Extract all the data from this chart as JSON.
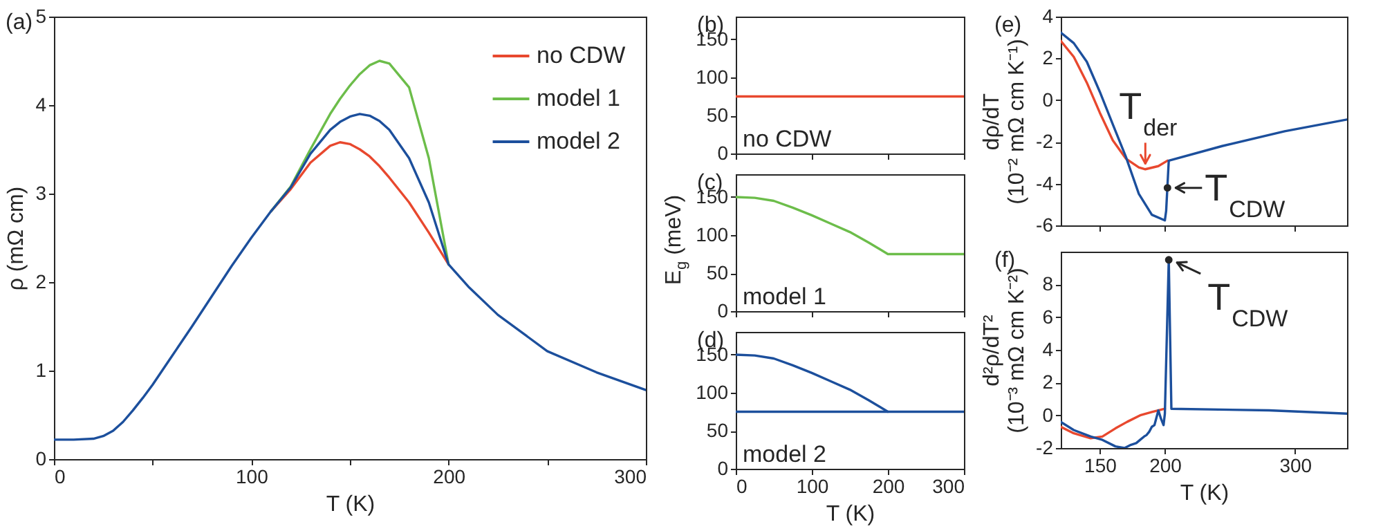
{
  "chart_data": [
    {
      "type": "line",
      "title": "(a)",
      "xlabel": "T (K)",
      "ylabel": "ρ (mΩ cm)",
      "xlim": [
        0,
        300
      ],
      "xticks": [
        0,
        {
          "value": 50,
          "label": null
        },
        100,
        {
          "value": 150,
          "label": null
        },
        200,
        {
          "value": 250,
          "label": null
        },
        300
      ],
      "ylim": [
        0,
        5
      ],
      "yticks": [
        0,
        1,
        2,
        3,
        4,
        5
      ],
      "legend": "top right",
      "x": [
        0,
        10,
        20,
        25,
        30,
        35,
        40,
        45,
        50,
        60,
        70,
        80,
        90,
        100,
        110,
        120,
        130,
        140,
        145,
        150,
        155,
        160,
        165,
        170,
        180,
        190,
        200,
        210,
        225,
        250,
        275,
        300
      ],
      "series": [
        {
          "name": "no CDW",
          "color": "#e8482e",
          "values": [
            null,
            null,
            null,
            null,
            null,
            null,
            null,
            null,
            null,
            null,
            null,
            null,
            null,
            null,
            2.8,
            3.05,
            3.35,
            3.54,
            3.58,
            3.56,
            3.5,
            3.42,
            3.31,
            3.18,
            2.9,
            2.56,
            2.2,
            null,
            null,
            null,
            null,
            null
          ]
        },
        {
          "name": "model 1",
          "color": "#6cbd4a",
          "values": [
            null,
            null,
            null,
            null,
            null,
            null,
            null,
            null,
            null,
            null,
            null,
            null,
            null,
            null,
            2.8,
            3.08,
            3.5,
            3.9,
            4.07,
            4.22,
            4.35,
            4.45,
            4.5,
            4.47,
            4.2,
            3.4,
            2.2,
            null,
            null,
            null,
            null,
            null
          ]
        },
        {
          "name": "model 2",
          "color": "#1c4f9c",
          "values": [
            0.22,
            0.22,
            0.23,
            0.26,
            0.32,
            0.42,
            0.55,
            0.69,
            0.84,
            1.17,
            1.5,
            1.84,
            2.18,
            2.5,
            2.8,
            3.07,
            3.45,
            3.72,
            3.81,
            3.87,
            3.9,
            3.88,
            3.82,
            3.72,
            3.4,
            2.9,
            2.2,
            1.95,
            1.63,
            1.22,
            0.98,
            0.78
          ]
        }
      ]
    },
    {
      "type": "line",
      "title": "(b)",
      "annotations": [
        "no CDW"
      ],
      "xlim": [
        0,
        300
      ],
      "xticks": [
        0,
        100,
        200,
        300
      ],
      "ylim": [
        0,
        180
      ],
      "yticks": [
        0,
        50,
        100,
        150
      ],
      "tick_labels": "y",
      "series": [
        {
          "color": "#e8482e",
          "x": [
            0,
            300
          ],
          "values": [
            75,
            75
          ]
        }
      ]
    },
    {
      "type": "line",
      "title": "(c)",
      "ylabel": "E$_{g}$ (meV)",
      "annotations": [
        "model 1"
      ],
      "xlim": [
        0,
        300
      ],
      "xticks": [
        0,
        100,
        200,
        300
      ],
      "ylim": [
        0,
        180
      ],
      "yticks": [
        0,
        50,
        100,
        150
      ],
      "tick_labels": "y",
      "series": [
        {
          "color": "#6cbd4a",
          "x": [
            0,
            25,
            50,
            75,
            100,
            125,
            150,
            175,
            200,
            300
          ],
          "values": [
            150,
            149,
            145,
            136,
            126,
            115,
            104,
            90,
            75,
            75
          ]
        }
      ]
    },
    {
      "type": "line",
      "title": "(d)",
      "xlabel": "T (K)",
      "annotations": [
        "model 2"
      ],
      "xlim": [
        0,
        300
      ],
      "xticks": [
        0,
        100,
        200,
        300
      ],
      "ylim": [
        0,
        180
      ],
      "yticks": [
        0,
        50,
        100,
        150
      ],
      "series": [
        {
          "color": "#1c4f9c",
          "x": [
            0,
            25,
            50,
            75,
            100,
            125,
            150,
            175,
            200
          ],
          "values": [
            150,
            149,
            145,
            136,
            126,
            115,
            104,
            90,
            75
          ]
        },
        {
          "color": "#1c4f9c",
          "x": [
            0,
            300
          ],
          "values": [
            75,
            75
          ]
        }
      ]
    },
    {
      "type": "line",
      "title": "(e)",
      "ylabel": "dρ/dT\n(10⁻² mΩ cm K⁻¹)",
      "xlim": [
        120,
        340
      ],
      "xticks": [
        150,
        200,
        300
      ],
      "ylim": [
        -6,
        4
      ],
      "yticks": [
        -6,
        -4,
        -2,
        0,
        2,
        4
      ],
      "tick_labels": "y",
      "annotations": [
        {
          "text": "T$_{der}$",
          "x": 185,
          "y": -3.3
        },
        {
          "text": "T$_{CDW}$",
          "x": 202,
          "y": -4.2
        }
      ],
      "series": [
        {
          "color": "#e8482e",
          "x": [
            120,
            130,
            140,
            150,
            160,
            170,
            180,
            185,
            195,
            202
          ],
          "values": [
            2.84,
            2.07,
            0.84,
            -0.6,
            -1.93,
            -2.8,
            -3.22,
            -3.31,
            -3.16,
            -2.9
          ]
        },
        {
          "color": "#1c4f9c",
          "x": [
            120,
            130,
            140,
            150,
            160,
            170,
            180,
            190,
            200,
            201,
            203,
            244,
            292,
            340
          ],
          "values": [
            3.24,
            2.73,
            1.84,
            0.4,
            -1.16,
            -2.71,
            -4.49,
            -5.49,
            -5.76,
            -5.3,
            -2.9,
            -2.2,
            -1.49,
            -0.93
          ]
        },
        {
          "type": "scatter",
          "color": "#262626",
          "x": [
            202
          ],
          "values": [
            -4.2
          ]
        }
      ]
    },
    {
      "type": "line",
      "title": "(f)",
      "xlabel": "T (K)",
      "ylabel": "d²ρ/dT²\n(10⁻³ mΩ cm K⁻²)",
      "xlim": [
        120,
        340
      ],
      "xticks": [
        150,
        200,
        300
      ],
      "ylim": [
        -2,
        10
      ],
      "yticks": [
        -2,
        0,
        2,
        4,
        6,
        8
      ],
      "annotations": [
        {
          "text": "T$_{CDW}$",
          "x": 203,
          "y": 9.5
        }
      ],
      "series": [
        {
          "color": "#e8482e",
          "x": [
            120,
            130,
            143,
            152,
            162,
            171,
            181,
            190,
            200
          ],
          "values": [
            -0.7,
            -1.1,
            -1.4,
            -1.3,
            -0.8,
            -0.4,
            0,
            0.2,
            0.4
          ]
        },
        {
          "color": "#1c4f9c",
          "x": [
            120,
            130,
            143,
            152,
            162,
            169,
            174,
            178,
            181,
            184,
            186,
            188,
            190,
            192,
            193,
            195,
            197,
            199,
            200,
            203,
            205,
            280,
            340
          ],
          "values": [
            -0.4,
            -0.9,
            -1.3,
            -1.5,
            -1.9,
            -2,
            -1.8,
            -1.7,
            -1.5,
            -1.3,
            -1.2,
            -1,
            -0.7,
            -0.6,
            -0.3,
            0.3,
            -0.2,
            -0.6,
            0.1,
            9.5,
            0.4,
            0.3,
            0.1
          ]
        },
        {
          "type": "scatter",
          "color": "#262626",
          "x": [
            203
          ],
          "values": [
            9.5
          ]
        }
      ]
    }
  ]
}
